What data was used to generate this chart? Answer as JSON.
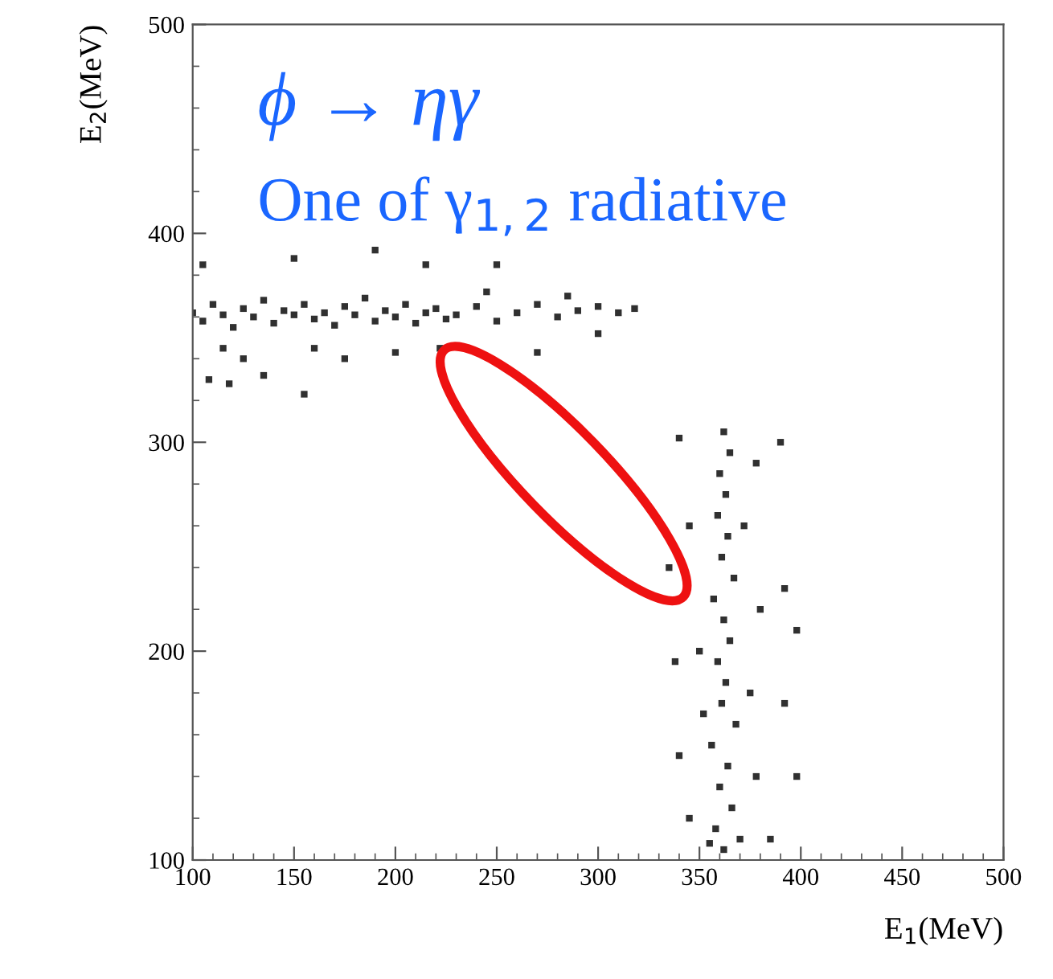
{
  "chart_data": {
    "type": "scatter",
    "xlabel": "E$_{1}$(MeV)",
    "ylabel": "E$_{2}$(MeV)",
    "annotations": [
      "ϕ → ηγ",
      "One of γ$_{1,2}$ radiative"
    ],
    "xlim": [
      100,
      500
    ],
    "ylim": [
      100,
      500
    ],
    "xticks": [
      100,
      150,
      200,
      250,
      300,
      350,
      400,
      450,
      500
    ],
    "yticks": [
      100,
      200,
      300,
      400,
      500
    ],
    "marker": "square",
    "grid": false,
    "legend": false,
    "series": [
      {
        "color": "#303030",
        "x": [
          100,
          105,
          110,
          115,
          120,
          125,
          130,
          135,
          140,
          145,
          150,
          155,
          160,
          165,
          170,
          175,
          180,
          185,
          190,
          195,
          200,
          205,
          210,
          215,
          220,
          225,
          230,
          240,
          250,
          260,
          270,
          280,
          290,
          300,
          310,
          318,
          105,
          115,
          125,
          135,
          150,
          160,
          175,
          190,
          200,
          215,
          222,
          250,
          270,
          245,
          285,
          300,
          108,
          118,
          155
        ],
        "values": [
          362,
          358,
          366,
          361,
          355,
          364,
          360,
          368,
          357,
          363,
          361,
          366,
          359,
          362,
          356,
          365,
          361,
          369,
          358,
          363,
          360,
          366,
          357,
          362,
          364,
          359,
          361,
          365,
          358,
          362,
          366,
          360,
          363,
          365,
          362,
          364,
          385,
          345,
          340,
          332,
          388,
          345,
          340,
          392,
          343,
          385,
          345,
          385,
          343,
          372,
          370,
          352,
          330,
          328,
          323
        ]
      },
      {
        "color": "#303030",
        "x": [
          362,
          358,
          366,
          360,
          364,
          356,
          368,
          361,
          363,
          359,
          365,
          362,
          357,
          367,
          361,
          364,
          359,
          363,
          360,
          365,
          362,
          340,
          345,
          378,
          385,
          375,
          380,
          350,
          338,
          372,
          378,
          340,
          392,
          398,
          392,
          398,
          335,
          390,
          345,
          370,
          355,
          352
        ],
        "values": [
          105,
          115,
          125,
          135,
          145,
          155,
          165,
          175,
          185,
          195,
          205,
          215,
          225,
          235,
          245,
          255,
          265,
          275,
          285,
          295,
          305,
          150,
          120,
          140,
          110,
          180,
          220,
          200,
          195,
          260,
          290,
          302,
          230,
          210,
          175,
          140,
          240,
          300,
          260,
          110,
          108,
          170
        ]
      }
    ]
  }
}
